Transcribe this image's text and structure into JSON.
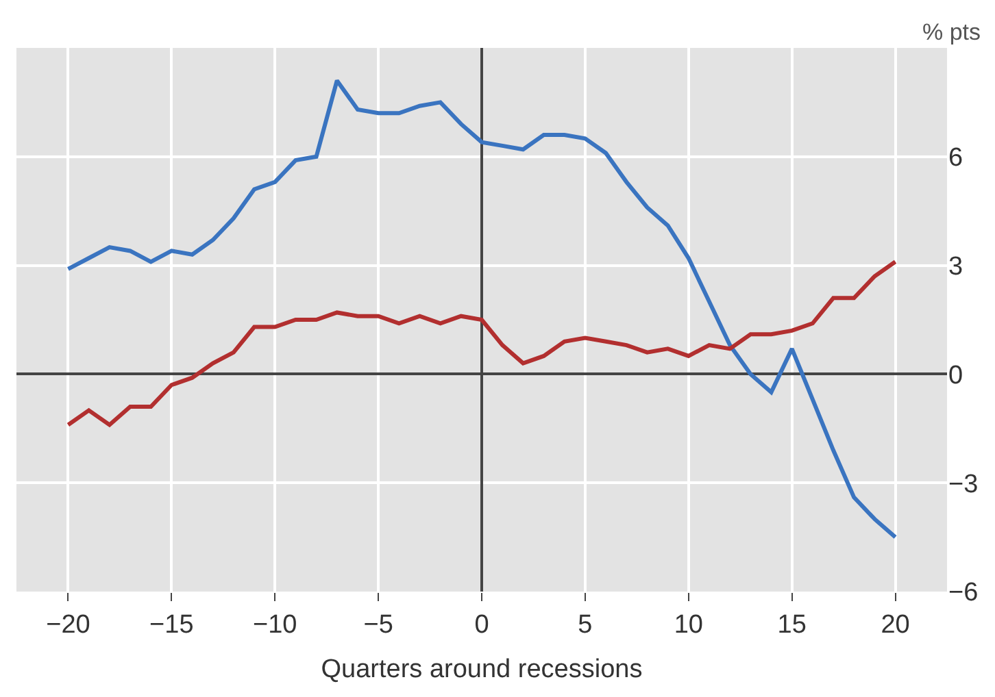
{
  "chart_data": {
    "type": "line",
    "xlabel": "Quarters around recessions",
    "annotations": [
      "% pts"
    ],
    "x": [
      -20,
      -19,
      -18,
      -17,
      -16,
      -15,
      -14,
      -13,
      -12,
      -11,
      -10,
      -9,
      -8,
      -7,
      -6,
      -5,
      -4,
      -3,
      -2,
      -1,
      0,
      1,
      2,
      3,
      4,
      5,
      6,
      7,
      8,
      9,
      10,
      11,
      12,
      13,
      14,
      15,
      16,
      17,
      18,
      19,
      20
    ],
    "series": [
      {
        "color": "#3a74c0",
        "values": [
          2.9,
          3.2,
          3.5,
          3.4,
          3.1,
          3.4,
          3.3,
          3.7,
          4.3,
          5.1,
          5.3,
          5.9,
          6.0,
          8.1,
          7.3,
          7.2,
          7.2,
          7.4,
          7.5,
          6.9,
          6.4,
          6.3,
          6.2,
          6.6,
          6.6,
          6.5,
          6.1,
          5.3,
          4.6,
          4.1,
          3.2,
          2.0,
          0.8,
          0.0,
          -0.5,
          0.7,
          -0.7,
          -2.1,
          -3.4,
          -4.0,
          -4.5
        ]
      },
      {
        "color": "#b22f2f",
        "values": [
          -1.4,
          -1.0,
          -1.4,
          -0.9,
          -0.9,
          -0.3,
          -0.1,
          0.3,
          0.6,
          1.3,
          1.3,
          1.5,
          1.5,
          1.7,
          1.6,
          1.6,
          1.4,
          1.6,
          1.4,
          1.6,
          1.5,
          0.8,
          0.3,
          0.5,
          0.9,
          1.0,
          0.9,
          0.8,
          0.6,
          0.7,
          0.5,
          0.8,
          0.7,
          1.1,
          1.1,
          1.2,
          1.4,
          2.1,
          2.1,
          2.7,
          3.1
        ]
      }
    ],
    "xlim": [
      -22.5,
      22.5
    ],
    "xticks": [
      -20,
      -15,
      -10,
      -5,
      0,
      5,
      10,
      15,
      20
    ],
    "ylim": [
      -6,
      9
    ],
    "yticks": [
      -6,
      -3,
      0,
      3,
      6
    ],
    "grid": true,
    "marker": "none",
    "line_style": "solid"
  }
}
